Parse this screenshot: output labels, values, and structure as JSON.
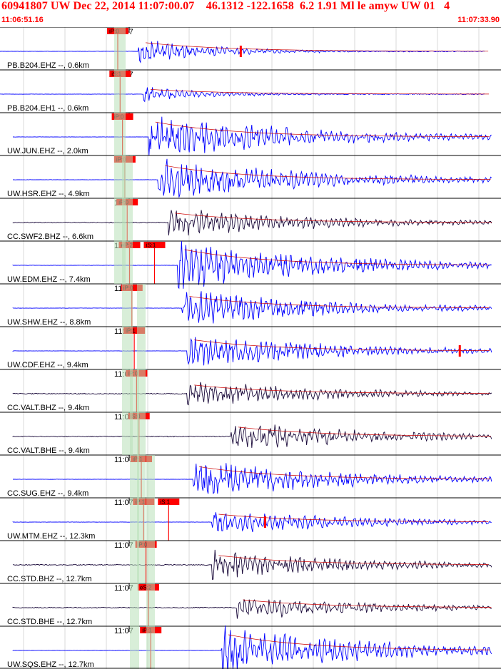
{
  "header": {
    "title": "60941807 UW Dec 22, 2014 11:07:00.07    46.1312 -122.1658  6.2 1.91 Ml le amyw UW 01   4",
    "start_time": "11:06:51.16",
    "end_time": "11:07:33.90"
  },
  "colors": {
    "header_text": "#ff0000",
    "waveform_vertical": "#0000ff",
    "waveform_broadband": "#1a0a3a",
    "pick_box": "#ff0000",
    "pick_bar": "#b8e0b8",
    "theory_curve": "#cc0000",
    "grid": "#000000"
  },
  "time_marker_label": "11:07",
  "traces": [
    {
      "label": "PB.B204.EHZ --, 0.6km",
      "picks": [
        "iP:0"
      ],
      "kind": "short",
      "amp": 0.55,
      "onset": 0.05,
      "spike": 0.48
    },
    {
      "label": "PB.B204.EH1 --, 0.6km",
      "picks": [
        "iS:1"
      ],
      "kind": "short",
      "amp": 0.3,
      "onset": 0.06
    },
    {
      "label": "UW.JUN.EHZ --, 2.0km",
      "picks": [
        "iP:0"
      ],
      "kind": "vertical",
      "amp": 0.95,
      "onset": 0.07
    },
    {
      "label": "UW.HSR.EHZ --, 4.9km",
      "picks": [
        "iP:0"
      ],
      "kind": "vertical",
      "amp": 0.9,
      "onset": 0.09
    },
    {
      "label": "CC.SWF2.BHZ --, 6.6km",
      "picks": [
        "iP:0"
      ],
      "kind": "broadband",
      "amp": 0.6,
      "onset": 0.11
    },
    {
      "label": "UW.EDM.EHZ --, 7.4km",
      "picks": [
        "eP:2",
        "iS:1"
      ],
      "kind": "vertical",
      "amp": 1.0,
      "onset": 0.13
    },
    {
      "label": "UW.SHW.EHZ --, 8.8km",
      "picks": [
        "iP:0"
      ],
      "kind": "vertical",
      "amp": 0.75,
      "onset": 0.14
    },
    {
      "label": "UW.CDF.EHZ --, 9.4km",
      "picks": [
        "iP:1"
      ],
      "kind": "vertical",
      "amp": 0.7,
      "onset": 0.15,
      "spike": 0.93
    },
    {
      "label": "CC.VALT.BHZ --, 9.4km",
      "picks": [
        "iP:0"
      ],
      "kind": "broadband",
      "amp": 0.55,
      "onset": 0.15
    },
    {
      "label": "CC.VALT.BHE --, 9.4km",
      "picks": [
        "iS:0"
      ],
      "kind": "broadband",
      "amp": 0.6,
      "onset": 0.24
    },
    {
      "label": "CC.SUG.EHZ --, 9.4km",
      "picks": [
        "iP:1"
      ],
      "kind": "vertical",
      "amp": 0.8,
      "onset": 0.16
    },
    {
      "label": "UW.MTM.EHZ --, 12.3km",
      "picks": [
        "iP:1",
        "iS:1"
      ],
      "kind": "vertical",
      "amp": 0.5,
      "onset": 0.2,
      "spike": 0.53
    },
    {
      "label": "CC.STD.BHZ --, 12.7km",
      "picks": [
        "iP:0"
      ],
      "kind": "broadband",
      "amp": 0.6,
      "onset": 0.2
    },
    {
      "label": "CC.STD.BHE --, 12.7km",
      "picks": [
        "eS:2"
      ],
      "kind": "broadband",
      "amp": 0.5,
      "onset": 0.25
    },
    {
      "label": "UW.SQS.EHZ --, 12.7km",
      "picks": [
        "iP:1"
      ],
      "kind": "vertical",
      "amp": 1.0,
      "onset": 0.22
    }
  ]
}
